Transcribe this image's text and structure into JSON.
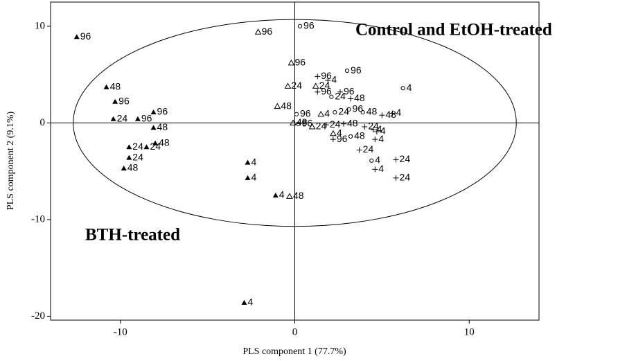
{
  "chart_data": {
    "type": "scatter",
    "xlabel": "PLS component 1 (77.7%)",
    "ylabel": "PLS component 2 (9.1%)",
    "xlim": [
      -14,
      14
    ],
    "ylim": [
      -20.4,
      12.5
    ],
    "xticks": [
      -10,
      0,
      10
    ],
    "yticks": [
      -20,
      -10,
      0,
      10
    ],
    "annotations": [
      "Control and EtOH-treated",
      "BTH-treated"
    ],
    "ellipse": {
      "rx": 12.7,
      "ry": 10.7
    },
    "series": [
      {
        "marker": "filled-triangle",
        "color": "#000000",
        "x": [
          -12.5,
          -10.8,
          -10.3,
          -10.4,
          -9.0,
          -8.1,
          -8.1,
          -9.5,
          -8.5,
          -8.0,
          -9.5,
          -9.8,
          -2.7,
          -2.7,
          -1.1,
          -2.9
        ],
        "y": [
          8.9,
          3.7,
          2.2,
          0.4,
          0.4,
          1.1,
          -0.5,
          -2.5,
          -2.5,
          -2.1,
          -3.6,
          -4.7,
          -4.1,
          -5.7,
          -7.5,
          -18.6
        ],
        "labels": [
          "96",
          "48",
          "96",
          "24",
          "96",
          "96",
          "48",
          "24",
          "24",
          "48",
          "24",
          "48",
          "4",
          "4",
          "4",
          "4"
        ]
      },
      {
        "marker": "open-triangle",
        "color": "#000000",
        "x": [
          -2.1,
          -0.2,
          -0.4,
          -1.0,
          -0.3,
          -0.1,
          1.2,
          1.5,
          2.2,
          1.0
        ],
        "y": [
          9.4,
          6.2,
          3.8,
          1.7,
          -7.6,
          0,
          3.8,
          0.9,
          -1.1,
          -0.4
        ],
        "labels": [
          "96",
          "96",
          "24",
          "48",
          "48",
          "48",
          "24",
          "4",
          "4",
          "24"
        ]
      },
      {
        "marker": "circle",
        "color": "#000000",
        "x": [
          0.3,
          3.0,
          6.2,
          4.4,
          0.1,
          2.3,
          3.1,
          3.9,
          2.1,
          3.2,
          0.2
        ],
        "y": [
          10.0,
          5.4,
          3.6,
          -3.9,
          0.9,
          1.1,
          1.4,
          1.1,
          2.7,
          -1.4,
          -0.1
        ],
        "labels": [
          "96",
          "96",
          "4",
          "4",
          "96",
          "24",
          "96",
          "48",
          "24",
          "48",
          "96"
        ]
      },
      {
        "marker": "plus",
        "color": "#000000",
        "x": [
          1.3,
          1.9,
          1.3,
          2.6,
          3.2,
          5.6,
          5.0,
          4.5,
          4.7,
          4.6,
          2.2,
          3.7,
          4.6,
          5.8,
          5.8,
          1.8,
          2.8,
          4.0
        ],
        "y": [
          4.8,
          4.4,
          3.2,
          3.2,
          2.5,
          1.0,
          0.8,
          -0.7,
          -0.9,
          -1.7,
          -1.7,
          -2.8,
          -4.8,
          -3.8,
          -5.7,
          -0.2,
          -0.1,
          -0.4
        ],
        "labels": [
          "96",
          "4",
          "96",
          "96",
          "48",
          "4",
          "48",
          "4",
          "4",
          "4",
          "96",
          "24",
          "4",
          "24",
          "24",
          "24",
          "48",
          "24"
        ]
      }
    ]
  }
}
